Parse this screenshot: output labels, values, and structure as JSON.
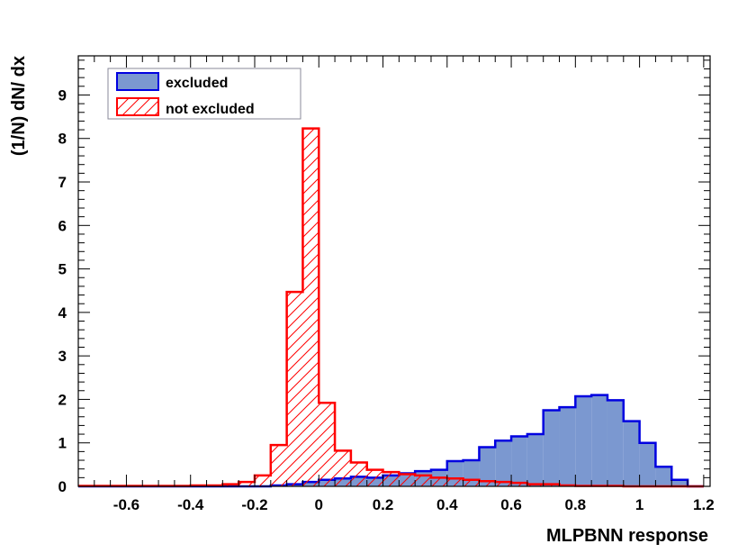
{
  "chart_data": {
    "type": "bar",
    "xlabel": "MLPBNN response",
    "ylabel": "(1/N) dN/ dx",
    "xlim": [
      -0.75,
      1.22
    ],
    "ylim": [
      0,
      9.9
    ],
    "xticks": [
      "-0.6",
      "-0.4",
      "-0.2",
      "0",
      "0.2",
      "0.4",
      "0.6",
      "0.8",
      "1",
      "1.2"
    ],
    "yticks": [
      "0",
      "1",
      "2",
      "3",
      "4",
      "5",
      "6",
      "7",
      "8",
      "9"
    ],
    "legend_position": "top-left",
    "bin_edges_start": -0.75,
    "bin_width": 0.05,
    "series": [
      {
        "name": "excluded",
        "style": "filled",
        "fill_color": "#7b98d0",
        "line_color": "#0000e0",
        "values": [
          0,
          0,
          0,
          0,
          0,
          0,
          0,
          0,
          0,
          0,
          0,
          0,
          0.02,
          0.05,
          0.1,
          0.15,
          0.18,
          0.22,
          0.2,
          0.25,
          0.3,
          0.35,
          0.38,
          0.58,
          0.6,
          0.9,
          1.05,
          1.15,
          1.2,
          1.75,
          1.82,
          2.07,
          2.1,
          1.98,
          1.5,
          1.0,
          0.45,
          0.15,
          0
        ]
      },
      {
        "name": "not excluded",
        "style": "hatched",
        "fill_color": "#ff0000",
        "line_color": "#ff0000",
        "values": [
          0.01,
          0.01,
          0.01,
          0.01,
          0.01,
          0.01,
          0.01,
          0.02,
          0.02,
          0.05,
          0.1,
          0.25,
          0.95,
          4.47,
          8.23,
          1.92,
          0.82,
          0.55,
          0.38,
          0.33,
          0.28,
          0.25,
          0.2,
          0.18,
          0.15,
          0.12,
          0.1,
          0.08,
          0.05,
          0.05,
          0.02,
          0.01,
          0.01,
          0.01,
          0,
          0,
          0,
          0,
          0
        ]
      }
    ]
  }
}
